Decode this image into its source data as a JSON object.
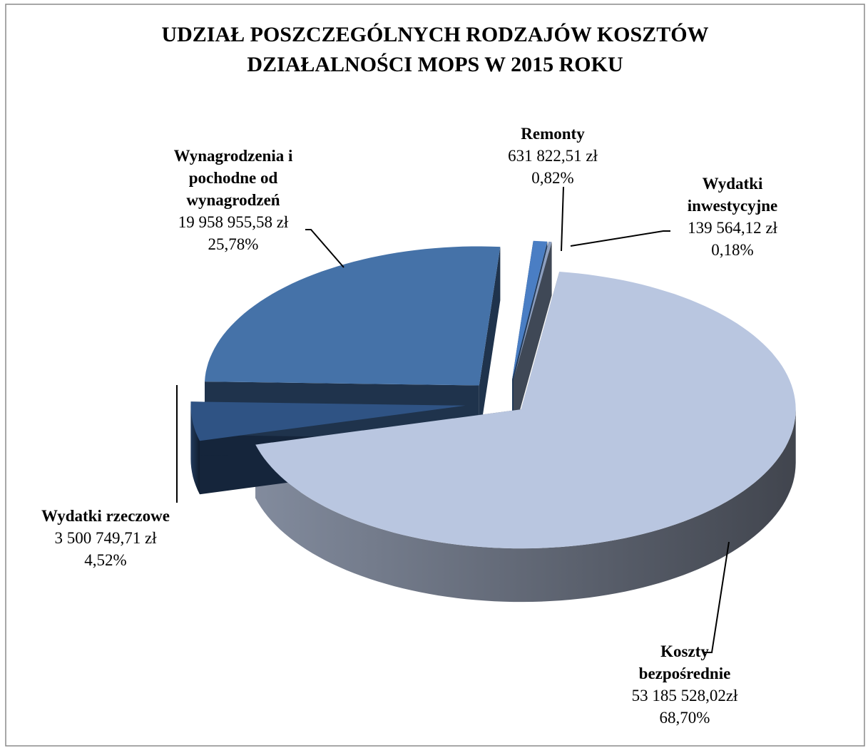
{
  "chart_data": {
    "type": "pie",
    "title": "UDZIAŁ POSZCZEGÓLNYCH RODZAJÓW KOSZTÓW DZIAŁALNOŚCI MOPS W 2015 ROKU",
    "categories": [
      "Koszty bezpośrednie",
      "Wydatki rzeczowe",
      "Wynagrodzenia i pochodne od wynagrodzeń",
      "Remonty",
      "Wydatki inwestycyjne"
    ],
    "values": [
      68.7,
      4.52,
      25.78,
      0.82,
      0.18
    ],
    "value_labels": [
      "68,70%",
      "4,52%",
      "25,78%",
      "0,82%",
      "0,18%"
    ],
    "amount_labels": [
      "53 185 528,02zł",
      "3 500 749,71 zł",
      "19 958 955,58 zł",
      "631 822,51 zł",
      "139 564,12 zł"
    ],
    "colors": [
      "#b9c6e0",
      "#2f5384",
      "#4572a8",
      "#4a7ec4",
      "#8d9fbf"
    ]
  }
}
